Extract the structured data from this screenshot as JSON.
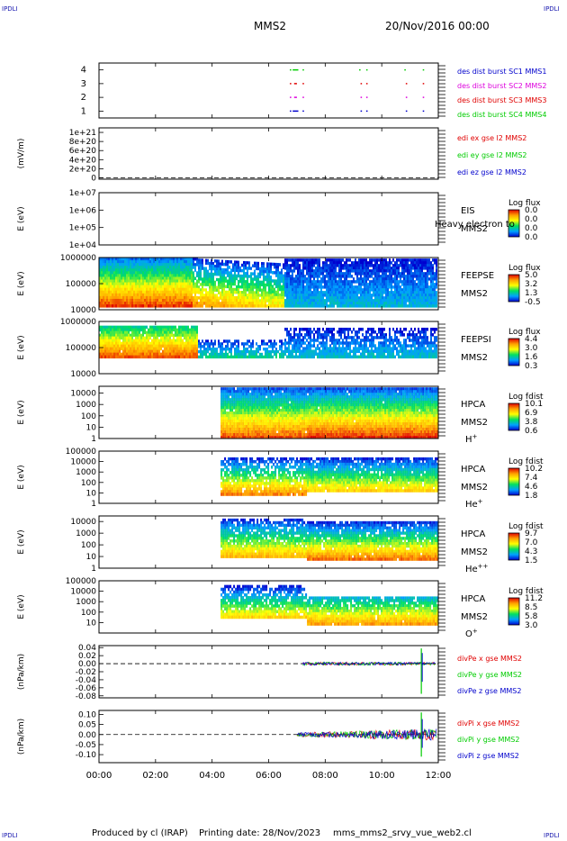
{
  "header": {
    "corner_label": "IPDLI",
    "spacecraft": "MMS2",
    "datetime": "20/Nov/2016 00:00"
  },
  "footer": {
    "produced_by": "Produced by cl (IRAP)",
    "printing_date": "Printing date: 28/Nov/2023",
    "filename": "mms_mms2_srvy_vue_web2.cl"
  },
  "colors": {
    "red": "#e00000",
    "green": "#00cc00",
    "blue": "#0000cc",
    "magenta": "#dd00dd"
  },
  "chart_data": [
    {
      "type": "scatter",
      "name": "burst-availability",
      "yticks": [
        "1",
        "2",
        "3",
        "4"
      ],
      "ylim": [
        0.5,
        4.5
      ],
      "legend": [
        {
          "text": "des dist burst SC1 MMS1",
          "color": "#0000cc"
        },
        {
          "text": "des dist burst SC2 MMS2",
          "color": "#dd00dd"
        },
        {
          "text": "des dist burst SC3 MMS3",
          "color": "#e00000"
        },
        {
          "text": "des dist burst SC4 MMS4",
          "color": "#00cc00"
        }
      ],
      "intervals": [
        {
          "level": 4,
          "color": "#00cc00",
          "ranges": [
            [
              6.75,
              6.8
            ],
            [
              6.85,
              7.05
            ],
            [
              7.2,
              7.25
            ],
            [
              9.2,
              9.25
            ],
            [
              9.45,
              9.5
            ],
            [
              10.8,
              10.85
            ],
            [
              11.45,
              11.5
            ]
          ]
        },
        {
          "level": 3,
          "color": "#e00000",
          "ranges": [
            [
              6.75,
              6.8
            ],
            [
              6.9,
              7.0
            ],
            [
              7.2,
              7.25
            ],
            [
              9.25,
              9.3
            ],
            [
              9.45,
              9.5
            ],
            [
              10.85,
              10.9
            ],
            [
              11.45,
              11.5
            ]
          ]
        },
        {
          "level": 2,
          "color": "#dd00dd",
          "ranges": [
            [
              6.75,
              6.8
            ],
            [
              6.9,
              7.0
            ],
            [
              7.2,
              7.25
            ],
            [
              9.25,
              9.3
            ],
            [
              9.45,
              9.5
            ],
            [
              10.85,
              10.9
            ],
            [
              11.45,
              11.5
            ]
          ]
        },
        {
          "level": 1,
          "color": "#0000cc",
          "ranges": [
            [
              6.75,
              6.8
            ],
            [
              6.85,
              7.05
            ],
            [
              7.2,
              7.25
            ],
            [
              9.25,
              9.3
            ],
            [
              9.45,
              9.5
            ],
            [
              10.85,
              10.9
            ],
            [
              11.45,
              11.5
            ]
          ]
        }
      ]
    },
    {
      "type": "line",
      "name": "edi-electric-field",
      "ylabel": "(mV/m)",
      "yticks": [
        "1e+21",
        "8e+20",
        "6e+20",
        "4e+20",
        "2e+20",
        "0"
      ],
      "ytick_values": [
        1e+21,
        8e+20,
        6e+20,
        4e+20,
        2e+20,
        0
      ],
      "ylim": [
        -3e+19,
        1.1e+21
      ],
      "legend": [
        {
          "text": "edi ex gse l2 MMS2",
          "color": "#e00000"
        },
        {
          "text": "edi ey gse l2 MMS2",
          "color": "#00cc00"
        },
        {
          "text": "edi ez gse l2 MMS2",
          "color": "#0000cc"
        }
      ]
    },
    {
      "type": "heatmap",
      "name": "eis-spectrogram",
      "ylabel": "E (eV)",
      "yticks": [
        "1e+07",
        "1e+06",
        "1e+05",
        "1e+04"
      ],
      "ytick_values": [
        10000000,
        1000000,
        100000,
        10000
      ],
      "ylim": [
        10000,
        10000000
      ],
      "instrument": [
        "EIS",
        "MMS2"
      ],
      "overlay_text": "Heavy electron to",
      "colorbar": {
        "title": "Log flux",
        "ticks": [
          "0.0",
          "0.0",
          "0.0",
          "0.0"
        ]
      },
      "data_start": null
    },
    {
      "type": "heatmap",
      "name": "feeps-electron-spectrogram",
      "ylabel": "E (eV)",
      "yticks": [
        "1000000",
        "100000",
        "10000"
      ],
      "ytick_values": [
        1000000,
        100000,
        10000
      ],
      "ylim": [
        10000,
        1000000
      ],
      "instrument": [
        "FEEPSE",
        "MMS2"
      ],
      "colorbar": {
        "title": "Log flux",
        "ticks": [
          "5.0",
          "3.2",
          "1.3",
          "-0.5"
        ]
      },
      "data_start": 0
    },
    {
      "type": "heatmap",
      "name": "feeps-ion-spectrogram",
      "ylabel": "E (eV)",
      "yticks": [
        "1000000",
        "100000",
        "10000"
      ],
      "ytick_values": [
        1000000,
        100000,
        10000
      ],
      "ylim": [
        10000,
        1000000
      ],
      "instrument": [
        "FEEPSI",
        "MMS2"
      ],
      "colorbar": {
        "title": "Log flux",
        "ticks": [
          "4.4",
          "3.0",
          "1.6",
          "0.3"
        ]
      },
      "data_start": 0
    },
    {
      "type": "heatmap",
      "name": "hpca-h-plus",
      "ylabel": "E (eV)",
      "yticks": [
        "10000",
        "1000",
        "100",
        "10",
        "1"
      ],
      "ytick_values": [
        10000,
        1000,
        100,
        10,
        1
      ],
      "ylim": [
        1,
        40000
      ],
      "instrument": [
        "HPCA",
        "MMS2"
      ],
      "species": {
        "base": "H",
        "sup": "+"
      },
      "colorbar": {
        "title": "Log fdist",
        "ticks": [
          "10.1",
          "6.9",
          "3.8",
          "0.6"
        ]
      },
      "data_start": 4.3
    },
    {
      "type": "heatmap",
      "name": "hpca-he-plus",
      "ylabel": "E (eV)",
      "yticks": [
        "100000",
        "10000",
        "1000",
        "100",
        "10",
        "1"
      ],
      "ytick_values": [
        100000,
        10000,
        1000,
        100,
        10,
        1
      ],
      "ylim": [
        1,
        100000
      ],
      "instrument": [
        "HPCA",
        "MMS2"
      ],
      "species": {
        "base": "He",
        "sup": "+"
      },
      "colorbar": {
        "title": "Log fdist",
        "ticks": [
          "10.2",
          "7.4",
          "4.6",
          "1.8"
        ]
      },
      "data_start": 4.3
    },
    {
      "type": "heatmap",
      "name": "hpca-he-plusplus",
      "ylabel": "E (eV)",
      "yticks": [
        "10000",
        "1000",
        "100",
        "10",
        "1"
      ],
      "ytick_values": [
        10000,
        1000,
        100,
        10,
        1
      ],
      "ylim": [
        1,
        30000
      ],
      "instrument": [
        "HPCA",
        "MMS2"
      ],
      "species": {
        "base": "He",
        "sup": "++"
      },
      "colorbar": {
        "title": "Log fdist",
        "ticks": [
          "9.7",
          "7.0",
          "4.3",
          "1.5"
        ]
      },
      "data_start": 4.3
    },
    {
      "type": "heatmap",
      "name": "hpca-o-plus",
      "ylabel": "E (eV)",
      "yticks": [
        "100000",
        "10000",
        "1000",
        "100",
        "10"
      ],
      "ytick_values": [
        100000,
        10000,
        1000,
        100,
        10
      ],
      "ylim": [
        1,
        100000
      ],
      "instrument": [
        "HPCA",
        "MMS2"
      ],
      "species": {
        "base": "O",
        "sup": "+"
      },
      "colorbar": {
        "title": "Log fdist",
        "ticks": [
          "11.2",
          "8.5",
          "5.8",
          "3.0"
        ]
      },
      "data_start": 4.3
    },
    {
      "type": "line",
      "name": "electron-pressure-gradient",
      "ylabel": "(nPa/km)",
      "yticks": [
        "0.04",
        "0.02",
        "0.00",
        "-0.02",
        "-0.04",
        "-0.06",
        "-0.08"
      ],
      "ytick_values": [
        0.04,
        0.02,
        0.0,
        -0.02,
        -0.04,
        -0.06,
        -0.08
      ],
      "ylim": [
        -0.085,
        0.045
      ],
      "legend": [
        {
          "text": "divPe x gse MMS2",
          "color": "#e00000"
        },
        {
          "text": "divPe y gse MMS2",
          "color": "#00cc00"
        },
        {
          "text": "divPe z gse MMS2",
          "color": "#0000cc"
        }
      ],
      "data_start": 7.2,
      "amplitude": 0.004,
      "spikes": [
        {
          "t": 11.4,
          "min": -0.075,
          "max": 0.038
        }
      ]
    },
    {
      "type": "line",
      "name": "ion-pressure-gradient",
      "ylabel": "(nPa/km)",
      "yticks": [
        "0.10",
        "0.05",
        "0.00",
        "-0.05",
        "-0.10"
      ],
      "ytick_values": [
        0.1,
        0.05,
        0.0,
        -0.05,
        -0.1
      ],
      "ylim": [
        -0.14,
        0.12
      ],
      "legend": [
        {
          "text": "divPi x gse MMS2",
          "color": "#e00000"
        },
        {
          "text": "divPi y gse MMS2",
          "color": "#00cc00"
        },
        {
          "text": "divPi z gse MMS2",
          "color": "#0000cc"
        }
      ],
      "data_start": 7.0,
      "amplitude": 0.02,
      "spikes": [
        {
          "t": 11.4,
          "min": -0.11,
          "max": 0.11
        }
      ]
    }
  ],
  "xaxis": {
    "ticks": [
      "00:00",
      "02:00",
      "04:00",
      "06:00",
      "08:00",
      "10:00",
      "12:00"
    ],
    "tick_hours": [
      0,
      2,
      4,
      6,
      8,
      10,
      12
    ],
    "xlim_hours": [
      0,
      12
    ]
  }
}
